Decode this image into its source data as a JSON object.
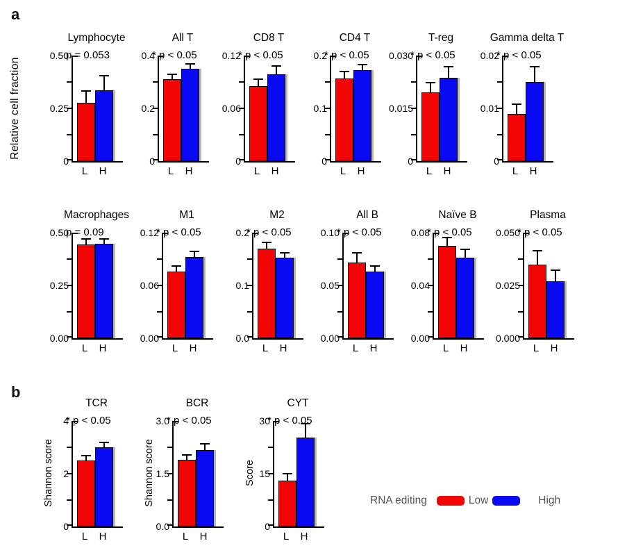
{
  "figure": {
    "panel_a_label": "a",
    "panel_b_label": "b",
    "row1_ylabel": "Relative cell fraction"
  },
  "legend": {
    "title": "RNA editing",
    "low_label": "Low",
    "high_label": "High",
    "low_color": "#f20505",
    "high_color": "#0a0af2"
  },
  "chart_data": [
    {
      "type": "bar",
      "panel": "a",
      "row": 1,
      "title": "Lymphocyte",
      "p_label": "p = 0.053",
      "significant": false,
      "ylabel": null,
      "ylim": [
        0,
        0.5
      ],
      "ytick_labels": [
        "0.50",
        "0.25",
        "0"
      ],
      "categories": [
        "L",
        "H"
      ],
      "series": [
        {
          "name": "Low",
          "value": 0.275,
          "error_to": 0.33
        },
        {
          "name": "High",
          "value": 0.335,
          "error_to": 0.4
        }
      ]
    },
    {
      "type": "bar",
      "panel": "a",
      "row": 1,
      "title": "All T",
      "p_label": "* p < 0.05",
      "significant": true,
      "ylabel": null,
      "ylim": [
        0,
        0.4
      ],
      "ytick_labels": [
        "0.4",
        "0.2",
        "0"
      ],
      "categories": [
        "L",
        "H"
      ],
      "series": [
        {
          "name": "Low",
          "value": 0.31,
          "error_to": 0.325
        },
        {
          "name": "High",
          "value": 0.35,
          "error_to": 0.365
        }
      ]
    },
    {
      "type": "bar",
      "panel": "a",
      "row": 1,
      "title": "CD8 T",
      "p_label": "* p < 0.05",
      "significant": true,
      "ylabel": null,
      "ylim": [
        0,
        0.12
      ],
      "ytick_labels": [
        "0.12",
        "0.06",
        "0"
      ],
      "categories": [
        "L",
        "H"
      ],
      "series": [
        {
          "name": "Low",
          "value": 0.085,
          "error_to": 0.092
        },
        {
          "name": "High",
          "value": 0.099,
          "error_to": 0.107
        }
      ]
    },
    {
      "type": "bar",
      "panel": "a",
      "row": 1,
      "title": "CD4 T",
      "p_label": "* p < 0.05",
      "significant": true,
      "ylabel": null,
      "ylim": [
        0,
        0.2
      ],
      "ytick_labels": [
        "0.2",
        "0.1",
        "0"
      ],
      "categories": [
        "L",
        "H"
      ],
      "series": [
        {
          "name": "Low",
          "value": 0.156,
          "error_to": 0.169
        },
        {
          "name": "High",
          "value": 0.172,
          "error_to": 0.182
        }
      ]
    },
    {
      "type": "bar",
      "panel": "a",
      "row": 1,
      "title": "T-reg",
      "p_label": "* p < 0.05",
      "significant": true,
      "ylabel": null,
      "ylim": [
        0,
        0.03
      ],
      "ytick_labels": [
        "0.030",
        "0.015",
        "0"
      ],
      "categories": [
        "L",
        "H"
      ],
      "series": [
        {
          "name": "Low",
          "value": 0.0195,
          "error_to": 0.0222
        },
        {
          "name": "High",
          "value": 0.0237,
          "error_to": 0.0267
        }
      ]
    },
    {
      "type": "bar",
      "panel": "a",
      "row": 1,
      "title": "Gamma delta T",
      "p_label": "* p < 0.05",
      "significant": true,
      "ylabel": null,
      "ylim": [
        0,
        0.02
      ],
      "ytick_labels": [
        "0.02",
        "0.01",
        "0"
      ],
      "categories": [
        "L",
        "H"
      ],
      "series": [
        {
          "name": "Low",
          "value": 0.009,
          "error_to": 0.0107
        },
        {
          "name": "High",
          "value": 0.015,
          "error_to": 0.0177
        }
      ]
    },
    {
      "type": "bar",
      "panel": "a",
      "row": 2,
      "title": "Macrophages",
      "p_label": "p = 0.09",
      "significant": false,
      "ylabel": null,
      "ylim": [
        0,
        0.5
      ],
      "ytick_labels": [
        "0.50",
        "0.25",
        "0.00"
      ],
      "categories": [
        "L",
        "H"
      ],
      "series": [
        {
          "name": "Low",
          "value": 0.445,
          "error_to": 0.467
        },
        {
          "name": "High",
          "value": 0.446,
          "error_to": 0.468
        }
      ]
    },
    {
      "type": "bar",
      "panel": "a",
      "row": 2,
      "title": "M1",
      "p_label": "* p < 0.05",
      "significant": true,
      "ylabel": null,
      "ylim": [
        0,
        0.12
      ],
      "ytick_labels": [
        "0.12",
        "0.06",
        "0.00"
      ],
      "categories": [
        "L",
        "H"
      ],
      "series": [
        {
          "name": "Low",
          "value": 0.0755,
          "error_to": 0.081
        },
        {
          "name": "High",
          "value": 0.092,
          "error_to": 0.098
        }
      ]
    },
    {
      "type": "bar",
      "panel": "a",
      "row": 2,
      "title": "M2",
      "p_label": "* p < 0.05",
      "significant": true,
      "ylabel": null,
      "ylim": [
        0,
        0.2
      ],
      "ytick_labels": [
        "0.2",
        "0.1",
        "0.0"
      ],
      "categories": [
        "L",
        "H"
      ],
      "series": [
        {
          "name": "Low",
          "value": 0.17,
          "error_to": 0.18
        },
        {
          "name": "High",
          "value": 0.152,
          "error_to": 0.161
        }
      ]
    },
    {
      "type": "bar",
      "panel": "a",
      "row": 2,
      "title": "All B",
      "p_label": "* p < 0.05",
      "significant": true,
      "ylabel": null,
      "ylim": [
        0,
        0.1
      ],
      "ytick_labels": [
        "0.10",
        "0.05",
        "0.00"
      ],
      "categories": [
        "L",
        "H"
      ],
      "series": [
        {
          "name": "Low",
          "value": 0.072,
          "error_to": 0.08
        },
        {
          "name": "High",
          "value": 0.063,
          "error_to": 0.068
        }
      ]
    },
    {
      "type": "bar",
      "panel": "a",
      "row": 2,
      "title": "Naïve B",
      "p_label": "* p < 0.05",
      "significant": true,
      "ylabel": null,
      "ylim": [
        0,
        0.08
      ],
      "ytick_labels": [
        "0.08",
        "0.04",
        "0.00"
      ],
      "categories": [
        "L",
        "H"
      ],
      "series": [
        {
          "name": "Low",
          "value": 0.07,
          "error_to": 0.076
        },
        {
          "name": "High",
          "value": 0.061,
          "error_to": 0.067
        }
      ]
    },
    {
      "type": "bar",
      "panel": "a",
      "row": 2,
      "title": "Plasma",
      "p_label": "* p < 0.05",
      "significant": true,
      "ylabel": null,
      "ylim": [
        0,
        0.05
      ],
      "ytick_labels": [
        "0.050",
        "0.025",
        "0.000"
      ],
      "categories": [
        "L",
        "H"
      ],
      "series": [
        {
          "name": "Low",
          "value": 0.035,
          "error_to": 0.041
        },
        {
          "name": "High",
          "value": 0.027,
          "error_to": 0.032
        }
      ]
    },
    {
      "type": "bar",
      "panel": "b",
      "row": 3,
      "title": "TCR",
      "p_label": "* p < 0.05",
      "significant": true,
      "ylabel": "Shannon score",
      "ylim": [
        0,
        4
      ],
      "ytick_labels": [
        "4",
        "2",
        "0"
      ],
      "categories": [
        "L",
        "H"
      ],
      "series": [
        {
          "name": "Low",
          "value": 2.5,
          "error_to": 2.66
        },
        {
          "name": "High",
          "value": 3.0,
          "error_to": 3.15
        }
      ]
    },
    {
      "type": "bar",
      "panel": "b",
      "row": 3,
      "title": "BCR",
      "p_label": "* p < 0.05",
      "significant": true,
      "ylabel": "Shannon score",
      "ylim": [
        0,
        3.0
      ],
      "ytick_labels": [
        "3.0",
        "1.5",
        "0.0"
      ],
      "categories": [
        "L",
        "H"
      ],
      "series": [
        {
          "name": "Low",
          "value": 1.9,
          "error_to": 2.02
        },
        {
          "name": "High",
          "value": 2.17,
          "error_to": 2.33
        }
      ]
    },
    {
      "type": "bar",
      "panel": "b",
      "row": 3,
      "title": "CYT",
      "p_label": "* p < 0.05",
      "significant": true,
      "ylabel": "Score",
      "ylim": [
        0,
        30
      ],
      "ytick_labels": [
        "30",
        "15",
        "0"
      ],
      "categories": [
        "L",
        "H"
      ],
      "series": [
        {
          "name": "Low",
          "value": 13,
          "error_to": 14.8
        },
        {
          "name": "High",
          "value": 25.3,
          "error_to": 29
        }
      ]
    }
  ]
}
